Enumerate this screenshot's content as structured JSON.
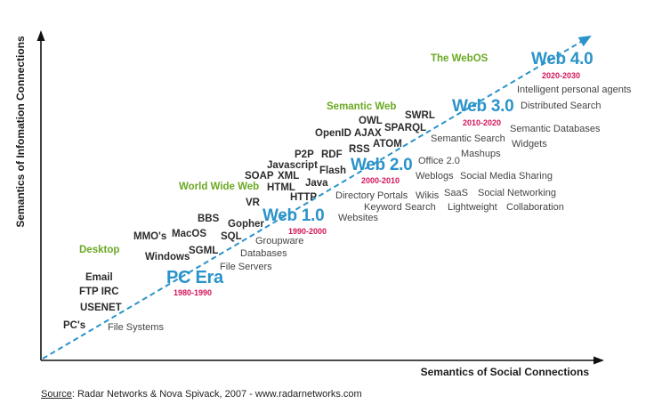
{
  "colors": {
    "era": "#2a93c9",
    "years": "#d4145a",
    "category": "#6aa823",
    "axis": "#111111",
    "trend": "#2a93c9"
  },
  "axes": {
    "y_title": "Semantics of Infomation Connections",
    "x_title": "Semantics of Social Connections"
  },
  "source": {
    "label": "Source",
    "text": ": Radar Networks & Nova Spivack, 2007 - www.radarnetworks.com"
  },
  "eras": [
    {
      "id": "pc-era",
      "name": "PC Era",
      "years": "1980-1990"
    },
    {
      "id": "web1",
      "name": "Web 1.0",
      "years": "1990-2000"
    },
    {
      "id": "web2",
      "name": "Web 2.0",
      "years": "2000-2010"
    },
    {
      "id": "web3",
      "name": "Web 3.0",
      "years": "2010-2020"
    },
    {
      "id": "web4",
      "name": "Web 4.0",
      "years": "2020-2030"
    }
  ],
  "categories": [
    "Desktop",
    "World Wide Web",
    "Semantic Web",
    "The WebOS"
  ],
  "technologies": {
    "pc": [
      "Email",
      "FTP IRC",
      "USENET",
      "PC's"
    ],
    "web1": [
      "BBS",
      "MMO's",
      "MacOS",
      "Gopher",
      "SQL",
      "SGML",
      "Windows",
      "VR"
    ],
    "web2": [
      "P2P",
      "RDF",
      "Javascript",
      "SOAP",
      "XML",
      "Flash",
      "HTML",
      "Java",
      "HTTP"
    ],
    "web3": [
      "SWRL",
      "OWL",
      "OpenID",
      "AJAX",
      "SPARQL",
      "RSS",
      "ATOM"
    ]
  },
  "applications": {
    "pc": [
      "File Systems"
    ],
    "web1": [
      "Groupware",
      "Databases",
      "File Servers",
      "Websites"
    ],
    "web2": [
      "Directory Portals",
      "Keyword Search",
      "Wikis",
      "SaaS",
      "Lightweight",
      "Social Networking",
      "Collaboration",
      "Weblogs",
      "Social Media Sharing",
      "Office 2.0",
      "Mashups"
    ],
    "web3": [
      "Semantic Search",
      "Semantic Databases",
      "Widgets"
    ],
    "web4": [
      "Intelligent personal agents",
      "Distributed Search"
    ]
  }
}
